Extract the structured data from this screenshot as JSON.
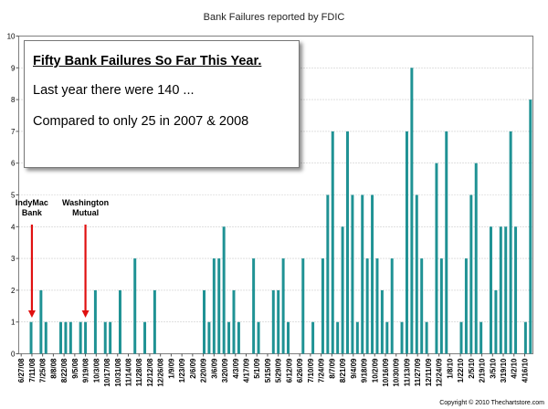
{
  "chart_data": {
    "type": "bar",
    "title": "Bank Failures reported by FDIC",
    "xlabel": "",
    "ylabel": "",
    "ylim": [
      0,
      10
    ],
    "yticks": [
      0,
      1,
      2,
      3,
      4,
      5,
      6,
      7,
      8,
      9,
      10
    ],
    "grid": true,
    "bar_color": "#1f9294",
    "tick_labels": [
      "6/27/08",
      "7/11/08",
      "7/25/08",
      "8/8/08",
      "8/22/08",
      "9/5/08",
      "9/19/08",
      "10/3/08",
      "10/17/08",
      "10/31/08",
      "11/14/08",
      "11/28/08",
      "12/12/08",
      "12/26/08",
      "1/9/09",
      "1/23/09",
      "2/6/09",
      "2/20/09",
      "3/6/09",
      "3/20/09",
      "4/3/09",
      "4/17/09",
      "5/1/09",
      "5/15/09",
      "5/29/09",
      "6/12/09",
      "6/26/09",
      "7/10/09",
      "7/24/09",
      "8/7/09",
      "8/21/09",
      "9/4/09",
      "9/18/09",
      "10/2/09",
      "10/16/09",
      "10/30/09",
      "11/13/09",
      "11/27/09",
      "12/11/09",
      "12/24/09",
      "1/8/10",
      "1/22/10",
      "2/5/10",
      "2/19/10",
      "3/5/10",
      "3/19/10",
      "4/2/10",
      "4/16/10"
    ],
    "values": [
      0,
      0,
      1,
      0,
      2,
      1,
      0,
      0,
      1,
      1,
      1,
      0,
      1,
      1,
      0,
      2,
      0,
      1,
      1,
      0,
      2,
      0,
      0,
      3,
      0,
      1,
      0,
      2,
      0,
      0,
      0,
      0,
      0,
      0,
      0,
      0,
      0,
      2,
      1,
      3,
      3,
      4,
      1,
      2,
      1,
      0,
      0,
      3,
      1,
      0,
      0,
      2,
      2,
      3,
      1,
      0,
      0,
      3,
      0,
      1,
      0,
      3,
      5,
      7,
      1,
      4,
      7,
      5,
      1,
      5,
      3,
      5,
      3,
      2,
      1,
      3,
      0,
      1,
      7,
      9,
      5,
      3,
      1,
      0,
      6,
      3,
      7,
      0,
      0,
      1,
      3,
      5,
      6,
      1,
      0,
      4,
      2,
      4,
      4,
      7,
      4,
      0,
      1,
      8
    ],
    "annotations": [
      {
        "text": "IndyMac Bank",
        "lines": [
          "IndyMac",
          "Bank"
        ],
        "points_to": "7/11/08"
      },
      {
        "text": "Washington Mutual",
        "lines": [
          "Washington",
          "Mutual"
        ],
        "points_to": "9/19/08"
      }
    ],
    "annotation_arrow_color": "#e01010"
  },
  "textbox": {
    "headline": "Fifty Bank Failures So Far This Year.",
    "line1": "Last year there were 140 ...",
    "line2": "Compared to only 25 in 2007 & 2008"
  },
  "copyright": "Copyright © 2010 Thechartstore.com"
}
